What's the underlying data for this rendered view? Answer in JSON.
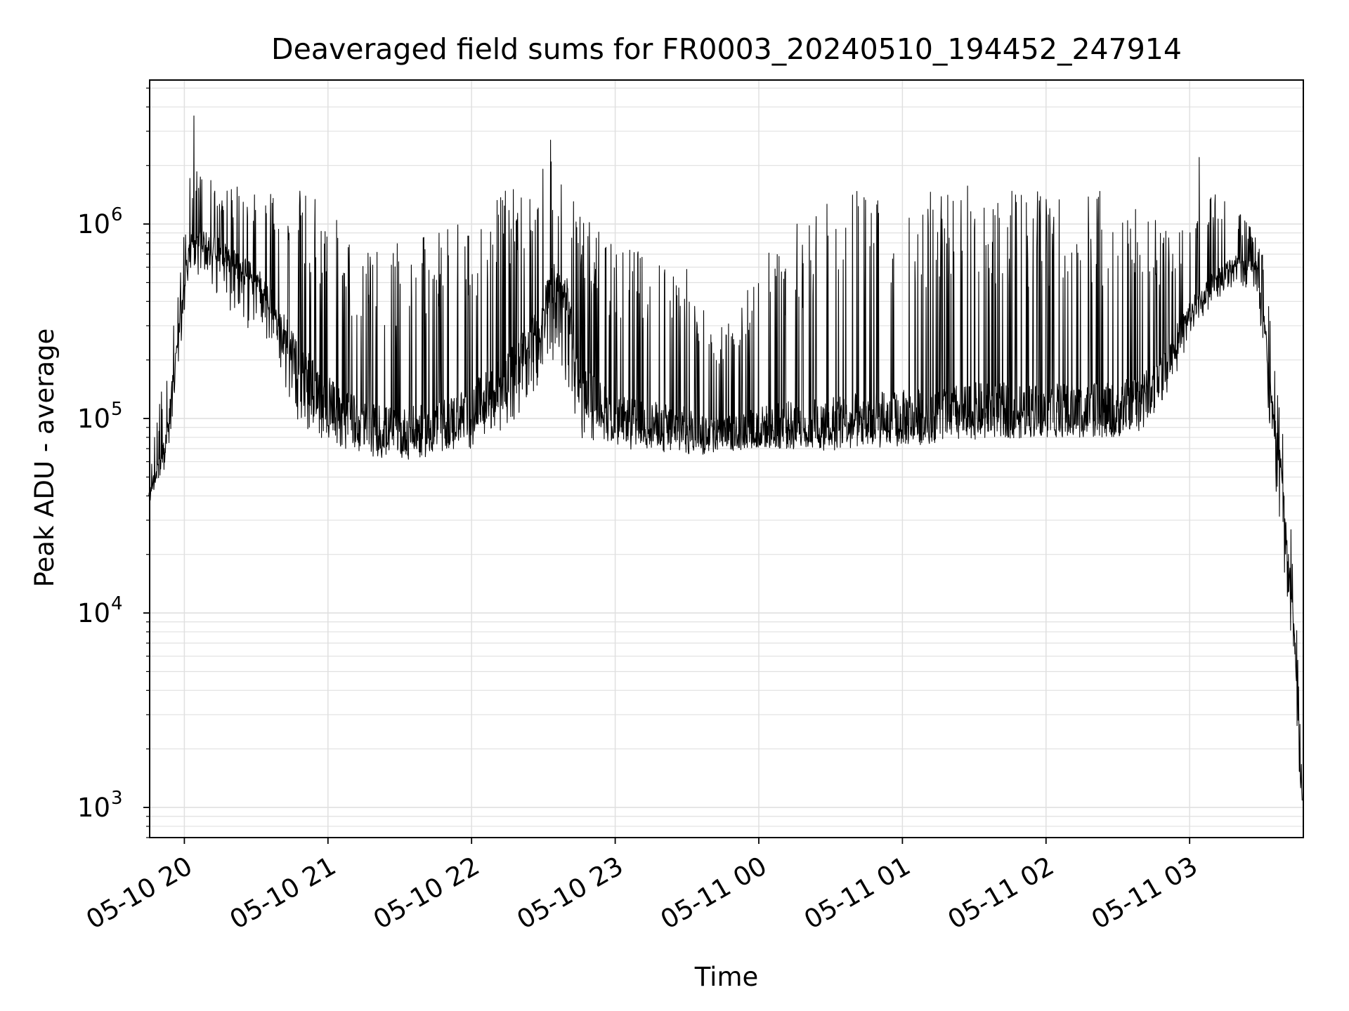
{
  "chart_data": {
    "type": "line",
    "title": "Deaveraged field sums for FR0003_20240510_194452_247914",
    "xlabel": "Time",
    "ylabel": "Peak ADU - average",
    "yscale": "log",
    "ylim": [
      700,
      5500000
    ],
    "xlim": [
      "2024-05-10T19:45:30",
      "2024-05-11T03:47:30"
    ],
    "x_ticks": [
      "05-10 20",
      "05-10 21",
      "05-10 22",
      "05-10 23",
      "05-11 00",
      "05-11 01",
      "05-11 02",
      "05-11 03"
    ],
    "x_tick_times": [
      "2024-05-10T20:00",
      "2024-05-10T21:00",
      "2024-05-10T22:00",
      "2024-05-10T23:00",
      "2024-05-11T00:00",
      "2024-05-11T01:00",
      "2024-05-11T02:00",
      "2024-05-11T03:00"
    ],
    "y_ticks": [
      1000,
      10000,
      100000,
      1000000
    ],
    "y_tick_labels": [
      {
        "base": "10",
        "exp": "3"
      },
      {
        "base": "10",
        "exp": "4"
      },
      {
        "base": "10",
        "exp": "5"
      },
      {
        "base": "10",
        "exp": "6"
      }
    ],
    "grid": true,
    "line_color": "#000000",
    "grid_color": "#e0e0e0",
    "envelope": [
      {
        "t": "2024-05-10T19:45",
        "low": 35000,
        "base": 40000,
        "high": 55000
      },
      {
        "t": "2024-05-10T19:52",
        "low": 50000,
        "base": 70000,
        "high": 180000
      },
      {
        "t": "2024-05-10T19:58",
        "low": 200000,
        "base": 300000,
        "high": 500000
      },
      {
        "t": "2024-05-10T20:02",
        "low": 600000,
        "base": 800000,
        "high": 2000000
      },
      {
        "t": "2024-05-10T20:10",
        "low": 500000,
        "base": 800000,
        "high": 1700000
      },
      {
        "t": "2024-05-10T20:20",
        "low": 350000,
        "base": 650000,
        "high": 1600000
      },
      {
        "t": "2024-05-10T20:30",
        "low": 250000,
        "base": 500000,
        "high": 1500000
      },
      {
        "t": "2024-05-10T20:40",
        "low": 130000,
        "base": 300000,
        "high": 1500000
      },
      {
        "t": "2024-05-10T20:50",
        "low": 90000,
        "base": 170000,
        "high": 1500000
      },
      {
        "t": "2024-05-10T21:00",
        "low": 75000,
        "base": 120000,
        "high": 1300000
      },
      {
        "t": "2024-05-10T21:15",
        "low": 65000,
        "base": 95000,
        "high": 700000
      },
      {
        "t": "2024-05-10T21:30",
        "low": 60000,
        "base": 85000,
        "high": 800000
      },
      {
        "t": "2024-05-10T21:45",
        "low": 65000,
        "base": 90000,
        "high": 900000
      },
      {
        "t": "2024-05-10T22:00",
        "low": 70000,
        "base": 110000,
        "high": 1200000
      },
      {
        "t": "2024-05-10T22:15",
        "low": 90000,
        "base": 160000,
        "high": 1500000
      },
      {
        "t": "2024-05-10T22:25",
        "low": 120000,
        "base": 250000,
        "high": 1800000
      },
      {
        "t": "2024-05-10T22:35",
        "low": 200000,
        "base": 500000,
        "high": 2300000
      },
      {
        "t": "2024-05-10T22:40",
        "low": 150000,
        "base": 400000,
        "high": 1800000
      },
      {
        "t": "2024-05-10T22:45",
        "low": 80000,
        "base": 150000,
        "high": 1200000
      },
      {
        "t": "2024-05-10T23:00",
        "low": 70000,
        "base": 100000,
        "high": 800000
      },
      {
        "t": "2024-05-10T23:30",
        "low": 65000,
        "base": 90000,
        "high": 600000
      },
      {
        "t": "2024-05-10T23:45",
        "low": 65000,
        "base": 85000,
        "high": 300000
      },
      {
        "t": "2024-05-11T00:00",
        "low": 70000,
        "base": 90000,
        "high": 700000
      },
      {
        "t": "2024-05-11T00:30",
        "low": 70000,
        "base": 95000,
        "high": 1500000
      },
      {
        "t": "2024-05-11T01:00",
        "low": 75000,
        "base": 100000,
        "high": 1600000
      },
      {
        "t": "2024-05-11T01:30",
        "low": 78000,
        "base": 110000,
        "high": 1600000
      },
      {
        "t": "2024-05-11T02:00",
        "low": 80000,
        "base": 110000,
        "high": 1500000
      },
      {
        "t": "2024-05-11T02:30",
        "low": 80000,
        "base": 110000,
        "high": 1500000
      },
      {
        "t": "2024-05-11T02:45",
        "low": 90000,
        "base": 140000,
        "high": 1200000
      },
      {
        "t": "2024-05-11T03:00",
        "low": 250000,
        "base": 350000,
        "high": 900000
      },
      {
        "t": "2024-05-11T03:10",
        "low": 400000,
        "base": 500000,
        "high": 1500000
      },
      {
        "t": "2024-05-11T03:20",
        "low": 500000,
        "base": 650000,
        "high": 1200000
      },
      {
        "t": "2024-05-11T03:28",
        "low": 400000,
        "base": 600000,
        "high": 900000
      },
      {
        "t": "2024-05-11T03:32",
        "low": 150000,
        "base": 250000,
        "high": 600000
      },
      {
        "t": "2024-05-11T03:35",
        "low": 50000,
        "base": 100000,
        "high": 200000
      },
      {
        "t": "2024-05-11T03:38",
        "low": 25000,
        "base": 60000,
        "high": 120000
      },
      {
        "t": "2024-05-11T03:41",
        "low": 10000,
        "base": 20000,
        "high": 50000
      },
      {
        "t": "2024-05-11T03:44",
        "low": 4000,
        "base": 7000,
        "high": 15000
      },
      {
        "t": "2024-05-11T03:46",
        "low": 1300,
        "base": 2000,
        "high": 3000
      },
      {
        "t": "2024-05-11T03:47",
        "low": 1000,
        "base": 1100,
        "high": 1500
      }
    ],
    "notable_peaks": [
      {
        "t": "2024-05-10T20:04",
        "value": 3600000
      },
      {
        "t": "2024-05-10T22:33",
        "value": 2700000
      },
      {
        "t": "2024-05-11T03:04",
        "value": 2200000
      }
    ]
  }
}
